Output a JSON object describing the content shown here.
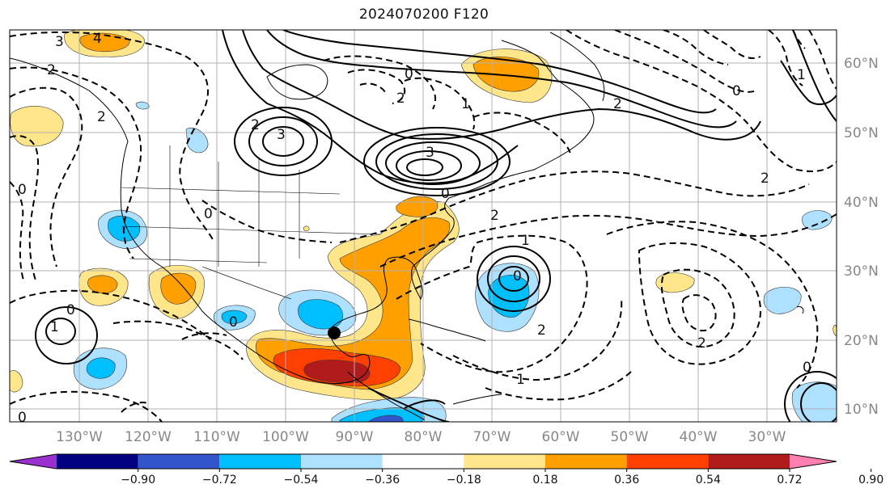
{
  "title": "2024070200 F120",
  "lon_labels": [
    "130°W",
    "120°W",
    "110°W",
    "100°W",
    "90°W",
    "80°W",
    "70°W",
    "60°W",
    "50°W",
    "40°W",
    "30°W"
  ],
  "lat_labels": [
    "60°N",
    "50°N",
    "40°N",
    "30°N",
    "20°N",
    "10°N"
  ],
  "colorbar": {
    "ticks": [
      "−0.90",
      "−0.72",
      "−0.54",
      "−0.36",
      "−0.18",
      "0.18",
      "0.36",
      "0.54",
      "0.72",
      "0.90"
    ],
    "colors": [
      "#9b30d0",
      "#000080",
      "#3355cc",
      "#00bfff",
      "#aee0ff",
      "#ffffff",
      "#ffe68a",
      "#ffa000",
      "#ff4000",
      "#b21b1b",
      "#ff80b0"
    ]
  },
  "contour_labels": [
    "4",
    "3",
    "2",
    "2",
    "0",
    "0",
    "1",
    "2",
    "3",
    "3",
    "0",
    "2",
    "0",
    "1",
    "0",
    "2",
    "1",
    "0",
    "0",
    "2",
    "2",
    "1",
    "2",
    "2",
    "0",
    "1",
    "0",
    "0"
  ],
  "marker": "storm-center"
}
